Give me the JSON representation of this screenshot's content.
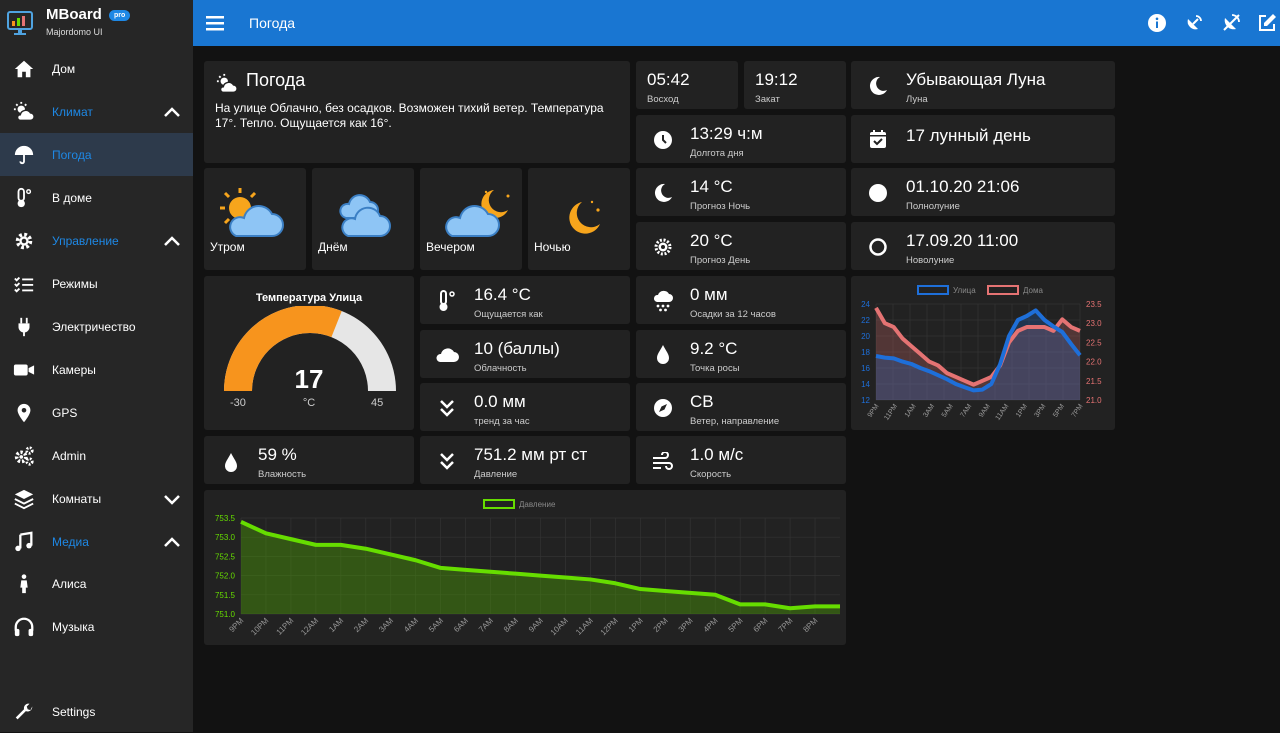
{
  "brand": {
    "name": "MBoard",
    "badge": "pro",
    "subtitle": "Majordomo UI"
  },
  "sidebar": {
    "items": [
      {
        "label": "Дом",
        "icon": "home-icon"
      },
      {
        "label": "Климат",
        "icon": "sun-cloud-icon"
      },
      {
        "label": "Погода",
        "icon": "umbrella-icon"
      },
      {
        "label": "В доме",
        "icon": "thermometer-icon"
      },
      {
        "label": "Управление",
        "icon": "gear-icon"
      },
      {
        "label": "Режимы",
        "icon": "checklist-icon"
      },
      {
        "label": "Электричество",
        "icon": "plug-icon"
      },
      {
        "label": "Камеры",
        "icon": "camera-icon"
      },
      {
        "label": "GPS",
        "icon": "map-pin-icon"
      },
      {
        "label": "Admin",
        "icon": "gears-icon"
      },
      {
        "label": "Комнаты",
        "icon": "layers-icon"
      },
      {
        "label": "Медиа",
        "icon": "music-note-icon"
      },
      {
        "label": "Алиса",
        "icon": "person-icon"
      },
      {
        "label": "Музыка",
        "icon": "headphones-icon"
      }
    ],
    "settings": "Settings"
  },
  "topbar": {
    "title": "Погода"
  },
  "weather": {
    "title": "Погода",
    "desc": "На улице Облачно, без осадков. Возможен тихий ветер. Температура 17°. Тепло. Ощущается как 16°."
  },
  "sun": {
    "sunrise": "05:42",
    "sunrise_label": "Восход",
    "sunset": "19:12",
    "sunset_label": "Закат"
  },
  "moon": {
    "phase": "Убывающая Луна",
    "phase_label": "Луна",
    "day": "17 лунный день",
    "full": "01.10.20 21:06",
    "full_label": "Полнолуние",
    "new": "17.09.20 11:00",
    "new_label": "Новолуние"
  },
  "daylen": {
    "value": "13:29 ч:м",
    "label": "Долгота дня"
  },
  "forecast_night": {
    "value": "14 °C",
    "label": "Прогноз Ночь"
  },
  "forecast_day": {
    "value": "20 °C",
    "label": "Прогноз День"
  },
  "dayparts": [
    {
      "label": "Утром"
    },
    {
      "label": "Днём"
    },
    {
      "label": "Вечером"
    },
    {
      "label": "Ночью"
    }
  ],
  "gauge": {
    "title": "Температура Улица",
    "value": "17",
    "unit": "°C",
    "min": "-30",
    "max": "45",
    "fraction": 0.62
  },
  "feels": {
    "value": "16.4 °C",
    "label": "Ощущается как"
  },
  "precip": {
    "value": "0 мм",
    "label": "Осадки за 12 часов"
  },
  "cloud": {
    "value": "10 (баллы)",
    "label": "Облачность"
  },
  "dew": {
    "value": "9.2 °C",
    "label": "Точка росы"
  },
  "trend": {
    "value": "0.0 мм",
    "label": "тренд за час"
  },
  "wind_dir": {
    "value": "СВ",
    "label": "Ветер, направление"
  },
  "humidity": {
    "value": "59 %",
    "label": "Влажность"
  },
  "pressure": {
    "value": "751.2 мм рт ст",
    "label": "Давление"
  },
  "wind_speed": {
    "value": "1.0 м/с",
    "label": "Скорость"
  },
  "colors": {
    "sidebar": "#262626",
    "topbar": "#1976d2",
    "accent": "#1e88e5",
    "card": "#222222",
    "gauge": "#f7941d",
    "street": "#1e6fd9",
    "home": "#e57373",
    "pressure": "#66dd00"
  },
  "chart_data": [
    {
      "type": "line",
      "legend": [
        {
          "name": "Улица"
        },
        {
          "name": "Дома"
        }
      ],
      "legend_position": "top-center",
      "x_ticks": [
        "9PM",
        "11PM",
        "1AM",
        "3AM",
        "5AM",
        "7AM",
        "9AM",
        "11AM",
        "1PM",
        "3PM",
        "5PM",
        "7PM"
      ],
      "y_left_ticks": [
        "24",
        "22",
        "20",
        "18",
        "16",
        "14",
        "12"
      ],
      "y_right_ticks": [
        "23.5",
        "23.0",
        "22.5",
        "22.0",
        "21.5",
        "21.0"
      ],
      "series": [
        {
          "name": "Улица",
          "axis": "left",
          "x": [
            0,
            1,
            2,
            3,
            4,
            5,
            6,
            7,
            8,
            9,
            10,
            11,
            12,
            13,
            14,
            15,
            16,
            17,
            18,
            19,
            20,
            21,
            22,
            23
          ],
          "values": [
            17.5,
            17.3,
            17.2,
            16.8,
            16.5,
            16.0,
            15.6,
            15.1,
            14.6,
            14.0,
            13.6,
            13.2,
            13.3,
            14.0,
            16.5,
            20.0,
            22.0,
            22.5,
            23.2,
            22.0,
            21.2,
            20.5,
            19.0,
            17.6
          ]
        },
        {
          "name": "Дома",
          "axis": "right",
          "x": [
            0,
            1,
            2,
            3,
            4,
            5,
            6,
            7,
            8,
            9,
            10,
            11,
            12,
            13,
            14,
            15,
            16,
            17,
            18,
            19,
            20,
            21,
            22,
            23
          ],
          "values": [
            23.4,
            23.0,
            22.9,
            22.6,
            22.4,
            22.2,
            22.0,
            21.9,
            21.7,
            21.6,
            21.5,
            21.4,
            21.5,
            21.6,
            21.9,
            22.5,
            22.8,
            22.9,
            22.9,
            22.9,
            22.8,
            23.1,
            22.9,
            22.8
          ]
        }
      ]
    },
    {
      "type": "area",
      "legend": [
        {
          "name": "Давление"
        }
      ],
      "legend_position": "top-center",
      "x_ticks": [
        "9PM",
        "10PM",
        "11PM",
        "12AM",
        "1AM",
        "2AM",
        "3AM",
        "4AM",
        "5AM",
        "6AM",
        "7AM",
        "8AM",
        "9AM",
        "10AM",
        "11AM",
        "12PM",
        "1PM",
        "2PM",
        "3PM",
        "4PM",
        "5PM",
        "6PM",
        "7PM",
        "8PM"
      ],
      "y_ticks": [
        "753.5",
        "753.0",
        "752.5",
        "752.0",
        "751.5",
        "751.0"
      ],
      "ylim": [
        751.0,
        753.5
      ],
      "series": [
        {
          "name": "Давление",
          "x": [
            0,
            1,
            2,
            3,
            4,
            5,
            6,
            7,
            8,
            9,
            10,
            11,
            12,
            13,
            14,
            15,
            16,
            17,
            18,
            19,
            20,
            21,
            22,
            23,
            24
          ],
          "values": [
            753.4,
            753.1,
            752.95,
            752.8,
            752.8,
            752.7,
            752.55,
            752.4,
            752.2,
            752.15,
            752.1,
            752.05,
            752.0,
            751.95,
            751.9,
            751.8,
            751.65,
            751.6,
            751.55,
            751.5,
            751.25,
            751.25,
            751.15,
            751.2,
            751.2
          ]
        }
      ]
    }
  ]
}
